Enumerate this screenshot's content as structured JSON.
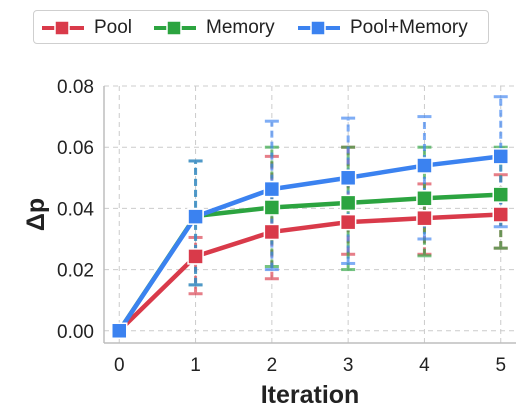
{
  "chart_data": {
    "type": "line",
    "title": "",
    "xlabel": "Iteration",
    "ylabel": "Δp",
    "x": [
      0,
      1,
      2,
      3,
      4,
      5
    ],
    "xticks": [
      "0",
      "1",
      "2",
      "3",
      "4",
      "5"
    ],
    "xlim": [
      -0.2,
      5.2
    ],
    "ylim": [
      -0.004,
      0.08
    ],
    "yticks": [
      "0.00",
      "0.02",
      "0.04",
      "0.06",
      "0.08"
    ],
    "ytick_values": [
      0.0,
      0.02,
      0.04,
      0.06,
      0.08
    ],
    "grid": true,
    "legend_placement": "top",
    "series": [
      {
        "name": "Pool",
        "color": "#d93a4a",
        "values": [
          0.0,
          0.0243,
          0.0323,
          0.0355,
          0.0368,
          0.038
        ],
        "err_low": [
          0.0,
          0.0121,
          0.017,
          0.025,
          0.025,
          0.027
        ],
        "err_high": [
          0.0,
          0.0305,
          0.057,
          0.06,
          0.048,
          0.051
        ]
      },
      {
        "name": "Memory",
        "color": "#2ca440",
        "values": [
          0.0,
          0.0375,
          0.0403,
          0.0418,
          0.0433,
          0.0445
        ],
        "err_low": [
          0.0,
          0.015,
          0.021,
          0.02,
          0.0245,
          0.027
        ],
        "err_high": [
          0.0,
          0.0555,
          0.06,
          0.06,
          0.06,
          0.06
        ]
      },
      {
        "name": "Pool+Memory",
        "color": "#3b82f0",
        "values": [
          0.0,
          0.0373,
          0.0463,
          0.05,
          0.054,
          0.057
        ],
        "err_low": [
          0.0,
          0.015,
          0.02,
          0.022,
          0.03,
          0.034
        ],
        "err_high": [
          0.0,
          0.0555,
          0.0685,
          0.0695,
          0.07,
          0.0765
        ]
      }
    ]
  }
}
